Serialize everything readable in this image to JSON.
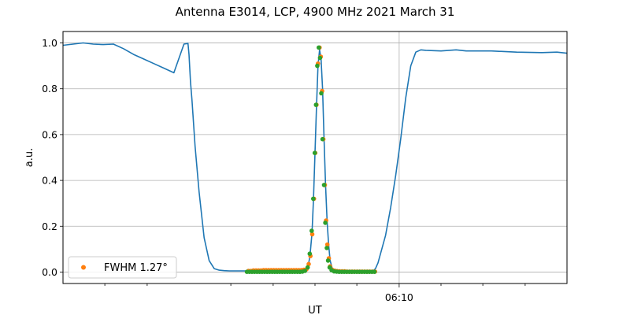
{
  "chart_data": {
    "type": "line",
    "title": "Antenna E3014, LCP, 4900 MHz 2021 March 31",
    "xlabel": "UT",
    "ylabel": "a.u.",
    "ylim": [
      -0.05,
      1.05
    ],
    "xlim": [
      0,
      1
    ],
    "yticks": [
      0.0,
      0.2,
      0.4,
      0.6,
      0.8,
      1.0
    ],
    "yticklabels": [
      "0.0",
      "0.2",
      "0.4",
      "0.6",
      "0.8",
      "1.0"
    ],
    "xticks_major": [
      {
        "x": 0.667,
        "label": "06:10"
      }
    ],
    "xticks_minor": [
      0.083,
      0.167,
      0.333,
      0.417,
      0.5,
      0.583,
      0.75,
      0.833,
      0.917
    ],
    "grid": true,
    "legend": {
      "placement": "lower-left",
      "entries": [
        {
          "label": "FWHM 1.27°",
          "color": "#ff7f0e"
        }
      ]
    },
    "colors": {
      "line": "#1f77b4",
      "fit": "#ff7f0e",
      "data_points": "#2ca02c"
    },
    "series": [
      {
        "kind": "line",
        "x": [
          0.0,
          0.02,
          0.04,
          0.06,
          0.08,
          0.1,
          0.12,
          0.14,
          0.16,
          0.18,
          0.2,
          0.22,
          0.24,
          0.248,
          0.25,
          0.253,
          0.256,
          0.262,
          0.27,
          0.28,
          0.29,
          0.3,
          0.31,
          0.32,
          0.33,
          0.345,
          0.36,
          0.4,
          0.44,
          0.47,
          0.48,
          0.486,
          0.49,
          0.494,
          0.497,
          0.5,
          0.503,
          0.506,
          0.509,
          0.512,
          0.515,
          0.518,
          0.521,
          0.524,
          0.527,
          0.53,
          0.535,
          0.54,
          0.55,
          0.56,
          0.58,
          0.6,
          0.61,
          0.615,
          0.62,
          0.625,
          0.63,
          0.64,
          0.65,
          0.66,
          0.67,
          0.68,
          0.69,
          0.7,
          0.71,
          0.72,
          0.75,
          0.78,
          0.8,
          0.85,
          0.9,
          0.95,
          0.98,
          1.0
        ],
        "y": [
          0.99,
          0.995,
          1.0,
          0.995,
          0.993,
          0.995,
          0.975,
          0.95,
          0.93,
          0.91,
          0.89,
          0.87,
          0.995,
          0.998,
          0.95,
          0.83,
          0.75,
          0.55,
          0.35,
          0.15,
          0.05,
          0.015,
          0.008,
          0.006,
          0.005,
          0.005,
          0.005,
          0.005,
          0.005,
          0.005,
          0.008,
          0.02,
          0.07,
          0.17,
          0.32,
          0.52,
          0.72,
          0.9,
          0.97,
          0.93,
          0.8,
          0.58,
          0.38,
          0.22,
          0.12,
          0.05,
          0.01,
          0.005,
          0.003,
          0.003,
          0.002,
          0.002,
          0.002,
          0.004,
          0.015,
          0.04,
          0.08,
          0.16,
          0.28,
          0.42,
          0.58,
          0.76,
          0.9,
          0.96,
          0.97,
          0.968,
          0.965,
          0.97,
          0.965,
          0.965,
          0.96,
          0.958,
          0.96,
          0.955
        ]
      },
      {
        "kind": "scatter",
        "name": "FWHM 1.27°",
        "color": "#ff7f0e",
        "x": [
          0.368,
          0.373,
          0.378,
          0.383,
          0.388,
          0.393,
          0.398,
          0.403,
          0.408,
          0.413,
          0.418,
          0.423,
          0.428,
          0.433,
          0.438,
          0.443,
          0.448,
          0.453,
          0.458,
          0.463,
          0.468,
          0.473,
          0.478,
          0.483,
          0.4875,
          0.491,
          0.4945,
          0.498,
          0.5005,
          0.503,
          0.506,
          0.509,
          0.5115,
          0.514,
          0.5165,
          0.5195,
          0.522,
          0.5245,
          0.5275,
          0.53,
          0.534,
          0.539,
          0.544,
          0.549,
          0.554,
          0.559,
          0.564,
          0.569,
          0.574,
          0.579,
          0.584,
          0.589,
          0.594,
          0.599,
          0.604,
          0.609,
          0.614,
          0.619
        ],
        "y": [
          0.005,
          0.005,
          0.007,
          0.007,
          0.007,
          0.007,
          0.008,
          0.008,
          0.008,
          0.008,
          0.008,
          0.008,
          0.008,
          0.008,
          0.008,
          0.008,
          0.008,
          0.008,
          0.008,
          0.008,
          0.008,
          0.008,
          0.01,
          0.012,
          0.035,
          0.07,
          0.165,
          0.32,
          0.52,
          0.73,
          0.91,
          0.98,
          0.94,
          0.79,
          0.58,
          0.38,
          0.225,
          0.12,
          0.06,
          0.025,
          0.01,
          0.006,
          0.004,
          0.003,
          0.003,
          0.003,
          0.002,
          0.002,
          0.002,
          0.002,
          0.002,
          0.002,
          0.002,
          0.002,
          0.002,
          0.002,
          0.002,
          0.002
        ]
      },
      {
        "kind": "scatter",
        "color": "#2ca02c",
        "x": [
          0.365,
          0.37,
          0.375,
          0.38,
          0.385,
          0.39,
          0.395,
          0.4,
          0.405,
          0.41,
          0.415,
          0.42,
          0.425,
          0.43,
          0.435,
          0.44,
          0.445,
          0.45,
          0.455,
          0.46,
          0.465,
          0.47,
          0.475,
          0.48,
          0.4855,
          0.4895,
          0.4935,
          0.4965,
          0.4995,
          0.502,
          0.5045,
          0.5075,
          0.51,
          0.5125,
          0.515,
          0.518,
          0.5205,
          0.5235,
          0.526,
          0.529,
          0.533,
          0.538,
          0.543,
          0.548,
          0.553,
          0.558,
          0.563,
          0.568,
          0.573,
          0.578,
          0.583,
          0.588,
          0.593,
          0.598,
          0.603,
          0.608,
          0.613,
          0.618
        ],
        "y": [
          0.001,
          0.001,
          0.001,
          0.001,
          0.001,
          0.001,
          0.001,
          0.001,
          0.001,
          0.001,
          0.001,
          0.001,
          0.001,
          0.001,
          0.001,
          0.001,
          0.001,
          0.001,
          0.001,
          0.001,
          0.001,
          0.001,
          0.002,
          0.005,
          0.02,
          0.08,
          0.18,
          0.32,
          0.52,
          0.73,
          0.9,
          0.98,
          0.935,
          0.78,
          0.58,
          0.38,
          0.215,
          0.105,
          0.05,
          0.02,
          0.008,
          0.003,
          0.002,
          0.001,
          0.001,
          0.001,
          0.001,
          0.001,
          0.001,
          0.001,
          0.001,
          0.001,
          0.001,
          0.001,
          0.001,
          0.001,
          0.001,
          0.001
        ]
      }
    ]
  }
}
